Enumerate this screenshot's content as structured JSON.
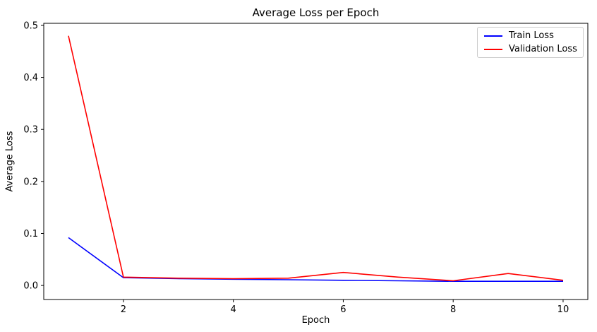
{
  "chart_data": {
    "type": "line",
    "title": "Average Loss per Epoch",
    "xlabel": "Epoch",
    "ylabel": "Average Loss",
    "x": [
      1,
      2,
      3,
      4,
      5,
      6,
      7,
      8,
      9,
      10
    ],
    "series": [
      {
        "name": "Train Loss",
        "color": "#0000ff",
        "values": [
          0.092,
          0.015,
          0.013,
          0.012,
          0.011,
          0.01,
          0.009,
          0.008,
          0.008,
          0.008
        ]
      },
      {
        "name": "Validation Loss",
        "color": "#ff0000",
        "values": [
          0.48,
          0.016,
          0.014,
          0.013,
          0.014,
          0.025,
          0.016,
          0.009,
          0.023,
          0.01
        ]
      }
    ],
    "xticks": {
      "values": [
        2,
        4,
        6,
        8,
        10
      ],
      "labels": [
        "2",
        "4",
        "6",
        "8",
        "10"
      ]
    },
    "yticks": {
      "values": [
        0.0,
        0.1,
        0.2,
        0.3,
        0.4,
        0.5
      ],
      "labels": [
        "0.0",
        "0.1",
        "0.2",
        "0.3",
        "0.4",
        "0.5"
      ]
    },
    "xlim": [
      0.55,
      10.45
    ],
    "ylim": [
      -0.027,
      0.504
    ],
    "grid": false,
    "legend": {
      "position": "upper right",
      "entries": [
        "Train Loss",
        "Validation Loss"
      ]
    }
  },
  "colors": {
    "axis": "#000000",
    "background": "#ffffff",
    "legend_border": "#cccccc",
    "train_line": "#0000ff",
    "validation_line": "#ff0000"
  }
}
